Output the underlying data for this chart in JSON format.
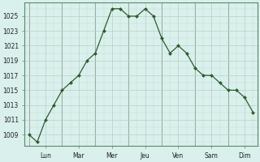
{
  "y_values": [
    1009,
    1008,
    1011,
    1013,
    1015,
    1016,
    1017,
    1019,
    1020,
    1023,
    1026,
    1026,
    1025,
    1025,
    1026,
    1025,
    1022,
    1020,
    1021,
    1020,
    1018,
    1017,
    1017,
    1016,
    1015,
    1015,
    1014,
    1012
  ],
  "n_points": 28,
  "day_labels": [
    "Lun",
    "Mar",
    "Mer",
    "Jeu",
    "Ven",
    "Sam",
    "Dim"
  ],
  "day_tick_positions": [
    0,
    4,
    8,
    12,
    16,
    20,
    24
  ],
  "day_separator_positions": [
    0,
    4,
    8,
    12,
    16,
    20,
    24
  ],
  "ytick_values": [
    1009,
    1011,
    1013,
    1015,
    1017,
    1019,
    1021,
    1023,
    1025
  ],
  "ylim": [
    1007.5,
    1026.8
  ],
  "xlim": [
    -0.5,
    27.5
  ],
  "line_color": "#2d5c2d",
  "marker_color": "#2d5c2d",
  "bg_color": "#d9f0ec",
  "grid_color": "#b8cfc8",
  "spine_color": "#5a8a6a",
  "tick_label_color": "#222222",
  "separator_color": "#8a9a8a"
}
